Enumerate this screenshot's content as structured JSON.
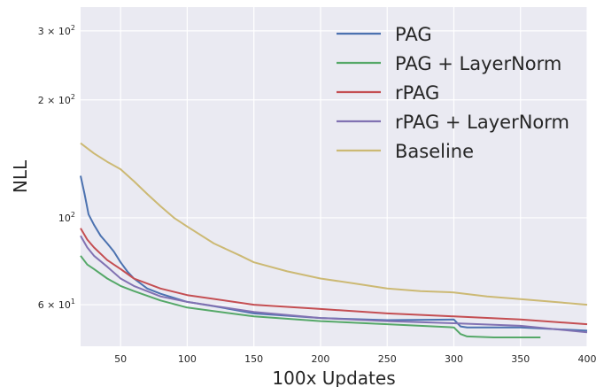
{
  "chart_data": {
    "type": "line",
    "title": "",
    "xlabel": "100x Updates",
    "ylabel": "NLL",
    "xlim": [
      20,
      400
    ],
    "ylim": [
      47,
      345
    ],
    "yscale": "log",
    "grid": true,
    "legend_position": "top-right",
    "x_ticks": [
      50,
      100,
      150,
      200,
      250,
      300,
      350,
      400
    ],
    "x_tick_labels": [
      "50",
      "100",
      "150",
      "200",
      "250",
      "300",
      "350",
      "400"
    ],
    "y_ticks": [
      {
        "value": 60,
        "label_base": "6 × 10",
        "label_exp": "1"
      },
      {
        "value": 100,
        "label_base": "10",
        "label_exp": "2"
      },
      {
        "value": 200,
        "label_base": "2 × 10",
        "label_exp": "2"
      },
      {
        "value": 300,
        "label_base": "3 × 10",
        "label_exp": "2"
      }
    ],
    "colors": {
      "background": "#EAEAF2",
      "grid": "#FFFFFF"
    },
    "series": [
      {
        "name": "PAG",
        "color": "#4C72B0",
        "x": [
          20,
          23,
          26,
          30,
          35,
          40,
          45,
          50,
          55,
          60,
          70,
          80,
          100,
          120,
          150,
          200,
          250,
          300,
          305,
          310,
          350,
          400
        ],
        "y": [
          128,
          115,
          102,
          96,
          90,
          86,
          82,
          77,
          73,
          70,
          66,
          64,
          61,
          59.5,
          57,
          55.5,
          54.8,
          55,
          52.8,
          52.5,
          52.5,
          51.5
        ]
      },
      {
        "name": "PAG + LayerNorm",
        "color": "#55A868",
        "x": [
          20,
          25,
          30,
          40,
          50,
          60,
          80,
          100,
          150,
          200,
          250,
          300,
          305,
          310,
          330,
          365
        ],
        "y": [
          80,
          76,
          74,
          70,
          67,
          65,
          61.5,
          59,
          56,
          54.5,
          53.5,
          52.5,
          50.5,
          49.8,
          49.5,
          49.5
        ]
      },
      {
        "name": "rPAG",
        "color": "#C44E52",
        "x": [
          20,
          25,
          30,
          40,
          50,
          60,
          80,
          100,
          150,
          200,
          250,
          300,
          350,
          400
        ],
        "y": [
          94,
          88,
          84,
          78,
          74,
          70,
          66,
          63.5,
          60,
          58.5,
          57,
          56,
          55,
          53.5
        ]
      },
      {
        "name": "rPAG + LayerNorm",
        "color": "#8172B2",
        "x": [
          20,
          25,
          30,
          40,
          50,
          60,
          80,
          100,
          150,
          200,
          250,
          300,
          350,
          400
        ],
        "y": [
          90,
          84,
          80,
          75,
          70,
          67,
          63,
          61,
          57.5,
          55.5,
          54.5,
          53.8,
          53,
          51
        ]
      },
      {
        "name": "Baseline",
        "color": "#CCB974",
        "x": [
          20,
          30,
          40,
          50,
          60,
          70,
          80,
          90,
          100,
          120,
          140,
          150,
          175,
          200,
          225,
          250,
          275,
          300,
          325,
          350,
          375,
          400
        ],
        "y": [
          155,
          146,
          139,
          133,
          124,
          115,
          107,
          100,
          95,
          86,
          80,
          77,
          73,
          70,
          68,
          66,
          65,
          64.5,
          63,
          62,
          61,
          60
        ]
      }
    ]
  }
}
